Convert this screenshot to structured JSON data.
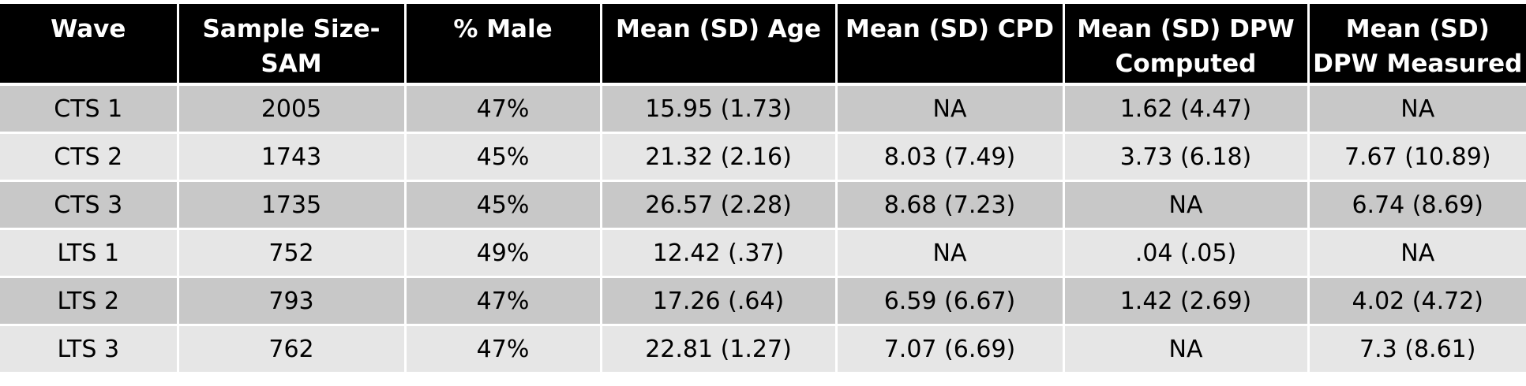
{
  "table": {
    "headers": [
      {
        "line1": "Wave",
        "line2": ""
      },
      {
        "line1": "Sample Size-",
        "line2": "SAM"
      },
      {
        "line1": "% Male",
        "line2": ""
      },
      {
        "line1": "Mean (SD) Age",
        "line2": ""
      },
      {
        "line1": "Mean (SD) CPD",
        "line2": ""
      },
      {
        "line1": "Mean (SD) DPW",
        "line2": "Computed"
      },
      {
        "line1": "Mean (SD)",
        "line2": "DPW Measured"
      }
    ],
    "rows": [
      [
        "CTS 1",
        "2005",
        "47%",
        "15.95 (1.73)",
        "NA",
        "1.62 (4.47)",
        "NA"
      ],
      [
        "CTS 2",
        "1743",
        "45%",
        "21.32 (2.16)",
        "8.03 (7.49)",
        "3.73 (6.18)",
        "7.67 (10.89)"
      ],
      [
        "CTS 3",
        "1735",
        "45%",
        "26.57 (2.28)",
        "8.68 (7.23)",
        "NA",
        "6.74 (8.69)"
      ],
      [
        "LTS 1",
        "752",
        "49%",
        "12.42 (.37)",
        "NA",
        ".04 (.05)",
        "NA"
      ],
      [
        "LTS 2",
        "793",
        "47%",
        "17.26 (.64)",
        "6.59 (6.67)",
        "1.42 (2.69)",
        "4.02 (4.72)"
      ],
      [
        "LTS 3",
        "762",
        "47%",
        "22.81 (1.27)",
        "7.07 (6.69)",
        "NA",
        "7.3 (8.61)"
      ]
    ]
  }
}
